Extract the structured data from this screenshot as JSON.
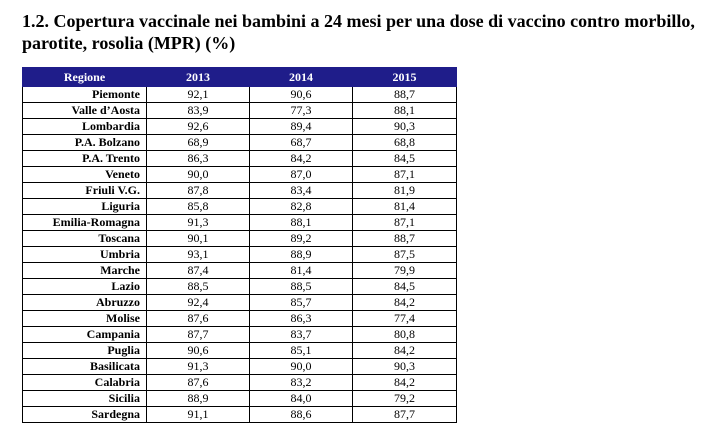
{
  "title": "1.2. Copertura vaccinale nei bambini a 24 mesi per una dose di vaccino contro morbillo, parotite, rosolia (MPR) (%)",
  "table": {
    "headers": [
      "Regione",
      "2013",
      "2014",
      "2015"
    ],
    "header_color": "#1f1d8a",
    "rows": [
      [
        "Piemonte",
        "92,1",
        "90,6",
        "88,7"
      ],
      [
        "Valle d’Aosta",
        "83,9",
        "77,3",
        "88,1"
      ],
      [
        "Lombardia",
        "92,6",
        "89,4",
        "90,3"
      ],
      [
        "P.A. Bolzano",
        "68,9",
        "68,7",
        "68,8"
      ],
      [
        "P.A. Trento",
        "86,3",
        "84,2",
        "84,5"
      ],
      [
        "Veneto",
        "90,0",
        "87,0",
        "87,1"
      ],
      [
        "Friuli V.G.",
        "87,8",
        "83,4",
        "81,9"
      ],
      [
        "Liguria",
        "85,8",
        "82,8",
        "81,4"
      ],
      [
        "Emilia-Romagna",
        "91,3",
        "88,1",
        "87,1"
      ],
      [
        "Toscana",
        "90,1",
        "89,2",
        "88,7"
      ],
      [
        "Umbria",
        "93,1",
        "88,9",
        "87,5"
      ],
      [
        "Marche",
        "87,4",
        "81,4",
        "79,9"
      ],
      [
        "Lazio",
        "88,5",
        "88,5",
        "84,5"
      ],
      [
        "Abruzzo",
        "92,4",
        "85,7",
        "84,2"
      ],
      [
        "Molise",
        "87,6",
        "86,3",
        "77,4"
      ],
      [
        "Campania",
        "87,7",
        "83,7",
        "80,8"
      ],
      [
        "Puglia",
        "90,6",
        "85,1",
        "84,2"
      ],
      [
        "Basilicata",
        "91,3",
        "90,0",
        "90,3"
      ],
      [
        "Calabria",
        "87,6",
        "83,2",
        "84,2"
      ],
      [
        "Sicilia",
        "88,9",
        "84,0",
        "79,2"
      ],
      [
        "Sardegna",
        "91,1",
        "88,6",
        "87,7"
      ]
    ]
  }
}
